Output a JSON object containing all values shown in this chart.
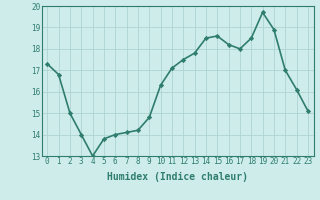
{
  "x": [
    0,
    1,
    2,
    3,
    4,
    5,
    6,
    7,
    8,
    9,
    10,
    11,
    12,
    13,
    14,
    15,
    16,
    17,
    18,
    19,
    20,
    21,
    22,
    23
  ],
  "y": [
    17.3,
    16.8,
    15.0,
    14.0,
    13.0,
    13.8,
    14.0,
    14.1,
    14.2,
    14.8,
    16.3,
    17.1,
    17.5,
    17.8,
    18.5,
    18.6,
    18.2,
    18.0,
    18.5,
    19.7,
    18.9,
    17.0,
    16.1,
    15.1
  ],
  "line_color": "#2e7d6e",
  "marker": "D",
  "marker_size": 2.2,
  "bg_color": "#ceecea",
  "grid_color": "#aed4d0",
  "ylim": [
    13,
    20
  ],
  "xlim": [
    -0.5,
    23.5
  ],
  "yticks": [
    13,
    14,
    15,
    16,
    17,
    18,
    19,
    20
  ],
  "xticks": [
    0,
    1,
    2,
    3,
    4,
    5,
    6,
    7,
    8,
    9,
    10,
    11,
    12,
    13,
    14,
    15,
    16,
    17,
    18,
    19,
    20,
    21,
    22,
    23
  ],
  "xlabel": "Humidex (Indice chaleur)",
  "xlabel_fontsize": 7,
  "tick_fontsize": 5.5,
  "line_width": 1.2
}
